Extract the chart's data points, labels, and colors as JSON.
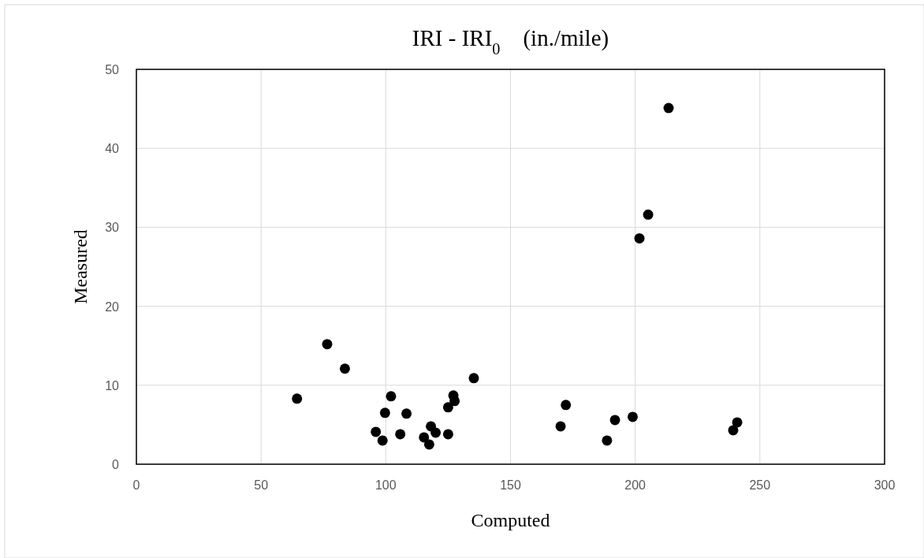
{
  "chart_data": {
    "type": "scatter",
    "title": "IRI - IRI$_{0}$    (in./mile)",
    "xlabel": "Computed",
    "ylabel": "Measured",
    "x": [
      64.4,
      76.5,
      83.6,
      96.0,
      98.7,
      99.7,
      102.1,
      105.8,
      108.3,
      115.3,
      117.4,
      118.1,
      120.0,
      125.0,
      125.0,
      127.1,
      127.6,
      135.3,
      170.1,
      172.2,
      188.7,
      191.9,
      199.0,
      201.7,
      205.2,
      213.4,
      239.3,
      240.9
    ],
    "series": [
      {
        "color": "#000000",
        "values": [
          8.3,
          15.2,
          12.1,
          4.1,
          3.0,
          6.5,
          8.6,
          3.8,
          6.4,
          3.4,
          2.5,
          4.8,
          4.0,
          3.8,
          7.2,
          8.7,
          8.0,
          10.9,
          4.8,
          7.5,
          3.0,
          5.6,
          6.0,
          28.6,
          31.6,
          45.1,
          4.3,
          5.3
        ]
      }
    ],
    "xlim": [
      0,
      300
    ],
    "xticks": [
      0,
      50,
      100,
      150,
      200,
      250,
      300
    ],
    "ylim": [
      0,
      50
    ],
    "yticks": [
      0,
      10,
      20,
      30,
      40,
      50
    ],
    "grid": true,
    "marker": "circle"
  }
}
